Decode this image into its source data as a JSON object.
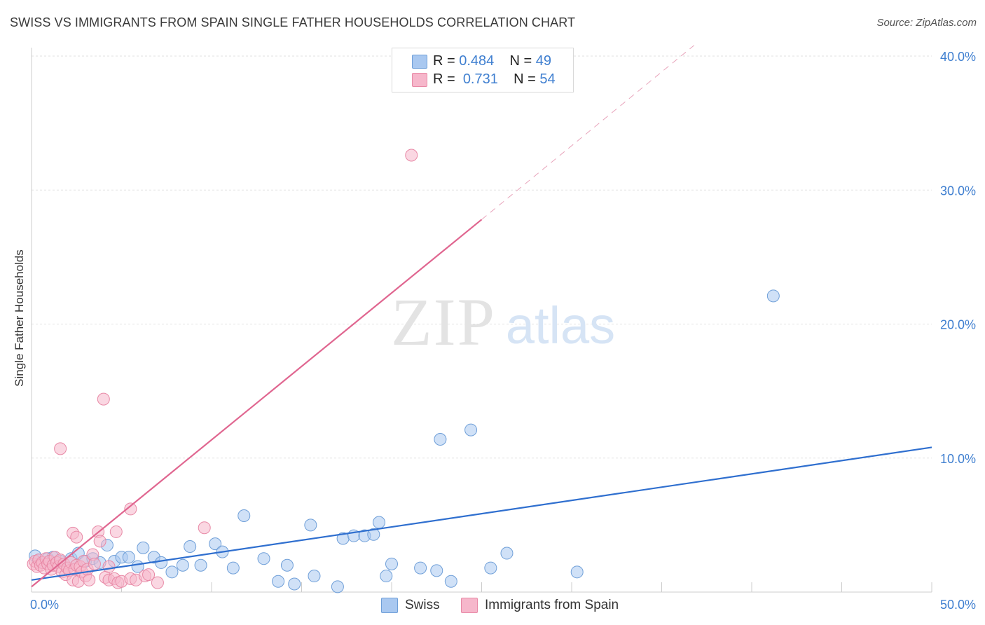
{
  "header": {
    "title": "SWISS VS IMMIGRANTS FROM SPAIN SINGLE FATHER HOUSEHOLDS CORRELATION CHART",
    "source": "Source: ZipAtlas.com"
  },
  "watermark": {
    "zip": "ZIP",
    "atlas": "atlas"
  },
  "legend_top": {
    "rows": [
      {
        "r_label": "R = ",
        "r_value": "0.484",
        "n_label": "N = ",
        "n_value": "49",
        "color": "#a9c8f0",
        "border": "#6f9fd8"
      },
      {
        "r_label": "R = ",
        "r_value": "0.731",
        "n_label": "N = ",
        "n_value": "54",
        "color": "#f6b7cb",
        "border": "#e889a6"
      }
    ]
  },
  "bottom_legend": {
    "items": [
      {
        "label": "Swiss",
        "color": "#a9c8f0",
        "border": "#6f9fd8"
      },
      {
        "label": "Immigrants from Spain",
        "color": "#f6b7cb",
        "border": "#e889a6"
      }
    ]
  },
  "chart_data": {
    "type": "scatter",
    "title": "SWISS VS IMMIGRANTS FROM SPAIN SINGLE FATHER HOUSEHOLDS CORRELATION CHART",
    "xlabel": "",
    "ylabel": "Single Father Households",
    "xlim": [
      0,
      50
    ],
    "ylim": [
      0,
      40
    ],
    "x_tick_labels": [
      "0.0%",
      "50.0%"
    ],
    "y_tick_labels": [
      "10.0%",
      "20.0%",
      "30.0%",
      "40.0%"
    ],
    "y_ticks": [
      10,
      20,
      30,
      40
    ],
    "grid": true,
    "series": [
      {
        "name": "Swiss",
        "color": "#a9c8f0",
        "stroke": "#6f9fd8",
        "line_color": "#2f6fcf",
        "trend": {
          "x0": 0,
          "y0": 0.9,
          "x1": 50,
          "y1": 10.8
        },
        "points": [
          [
            0.2,
            2.7
          ],
          [
            0.4,
            2.4
          ],
          [
            0.6,
            2.2
          ],
          [
            0.9,
            2.5
          ],
          [
            1.2,
            2.6
          ],
          [
            1.6,
            2.3
          ],
          [
            2.2,
            2.5
          ],
          [
            2.6,
            2.9
          ],
          [
            3.0,
            2.3
          ],
          [
            3.4,
            2.5
          ],
          [
            3.8,
            2.2
          ],
          [
            4.2,
            3.5
          ],
          [
            4.6,
            2.3
          ],
          [
            5.0,
            2.6
          ],
          [
            5.4,
            2.6
          ],
          [
            5.9,
            1.9
          ],
          [
            6.2,
            3.3
          ],
          [
            6.8,
            2.6
          ],
          [
            7.2,
            2.2
          ],
          [
            7.8,
            1.5
          ],
          [
            8.4,
            2.0
          ],
          [
            8.8,
            3.4
          ],
          [
            9.4,
            2.0
          ],
          [
            10.2,
            3.6
          ],
          [
            10.6,
            3.0
          ],
          [
            11.2,
            1.8
          ],
          [
            11.8,
            5.7
          ],
          [
            12.9,
            2.5
          ],
          [
            13.7,
            0.8
          ],
          [
            14.2,
            2.0
          ],
          [
            14.6,
            0.6
          ],
          [
            15.5,
            5.0
          ],
          [
            15.7,
            1.2
          ],
          [
            17.0,
            0.4
          ],
          [
            17.3,
            4.0
          ],
          [
            17.9,
            4.2
          ],
          [
            18.5,
            4.2
          ],
          [
            19.0,
            4.3
          ],
          [
            19.3,
            5.2
          ],
          [
            19.7,
            1.2
          ],
          [
            20.0,
            2.1
          ],
          [
            21.6,
            1.8
          ],
          [
            22.5,
            1.6
          ],
          [
            22.7,
            11.4
          ],
          [
            23.3,
            0.8
          ],
          [
            24.4,
            12.1
          ],
          [
            25.5,
            1.8
          ],
          [
            26.4,
            2.9
          ],
          [
            30.3,
            1.5
          ],
          [
            41.2,
            22.1
          ]
        ]
      },
      {
        "name": "Immigrants from Spain",
        "color": "#f6b7cb",
        "stroke": "#e889a6",
        "line_color": "#e06690",
        "trend": {
          "x0": 0,
          "y0": 0.4,
          "x1": 25,
          "y1": 27.8
        },
        "trend_ext": {
          "x0": 25,
          "y0": 27.8,
          "x1": 36.8,
          "y1": 40.8
        },
        "points": [
          [
            0.1,
            2.1
          ],
          [
            0.2,
            2.3
          ],
          [
            0.3,
            1.9
          ],
          [
            0.4,
            2.4
          ],
          [
            0.5,
            2.0
          ],
          [
            0.6,
            2.2
          ],
          [
            0.7,
            1.8
          ],
          [
            0.8,
            2.5
          ],
          [
            0.9,
            2.1
          ],
          [
            1.0,
            2.3
          ],
          [
            1.1,
            1.7
          ],
          [
            1.2,
            2.0
          ],
          [
            1.3,
            2.6
          ],
          [
            1.4,
            2.2
          ],
          [
            1.5,
            1.9
          ],
          [
            1.6,
            2.4
          ],
          [
            1.7,
            1.5
          ],
          [
            1.8,
            2.1
          ],
          [
            1.9,
            1.3
          ],
          [
            2.0,
            1.8
          ],
          [
            2.1,
            1.6
          ],
          [
            2.2,
            2.2
          ],
          [
            2.3,
            0.9
          ],
          [
            2.4,
            1.7
          ],
          [
            2.5,
            2.0
          ],
          [
            2.6,
            0.8
          ],
          [
            2.7,
            1.9
          ],
          [
            2.8,
            1.5
          ],
          [
            2.9,
            2.3
          ],
          [
            3.0,
            1.2
          ],
          [
            3.1,
            1.7
          ],
          [
            3.2,
            0.9
          ],
          [
            3.4,
            2.8
          ],
          [
            3.5,
            2.1
          ],
          [
            2.3,
            4.4
          ],
          [
            2.5,
            4.1
          ],
          [
            3.7,
            4.5
          ],
          [
            3.8,
            3.8
          ],
          [
            4.1,
            1.1
          ],
          [
            4.3,
            1.9
          ],
          [
            4.3,
            0.9
          ],
          [
            4.6,
            1.0
          ],
          [
            4.8,
            0.7
          ],
          [
            5.0,
            0.8
          ],
          [
            5.5,
            1.0
          ],
          [
            5.8,
            0.9
          ],
          [
            6.3,
            1.2
          ],
          [
            6.5,
            1.3
          ],
          [
            7.0,
            0.7
          ],
          [
            4.7,
            4.5
          ],
          [
            5.5,
            6.2
          ],
          [
            9.6,
            4.8
          ],
          [
            1.6,
            10.7
          ],
          [
            4.0,
            14.4
          ],
          [
            21.1,
            32.6
          ]
        ]
      }
    ]
  }
}
